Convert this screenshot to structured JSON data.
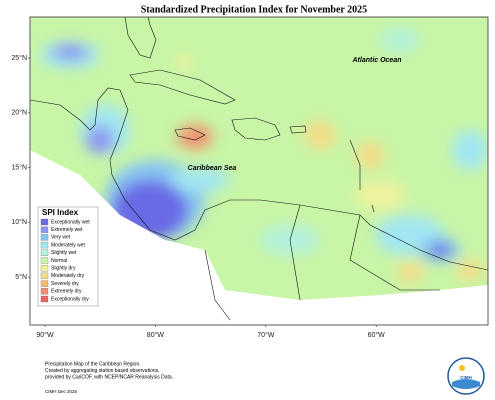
{
  "title": "Standardized Precipitation Index for November 2025",
  "lat_labels": [
    "25°N",
    "20°N",
    "15°N",
    "10°N",
    "5°N"
  ],
  "lon_labels": [
    "90°W",
    "80°W",
    "70°W",
    "60°W"
  ],
  "places": [
    "Atlantic Ocean",
    "Caribbean Sea"
  ],
  "legend": {
    "title": "SPI Index",
    "items": [
      {
        "label": "Exceptionally wet",
        "color": "#6b6be6"
      },
      {
        "label": "Extremely wet",
        "color": "#8c96f0"
      },
      {
        "label": "Very wet",
        "color": "#86c4f2"
      },
      {
        "label": "Moderately wet",
        "color": "#a2e6f2"
      },
      {
        "label": "Slightly wet",
        "color": "#b4f0dc"
      },
      {
        "label": "Normal",
        "color": "#c8f5a6"
      },
      {
        "label": "Slightly dry",
        "color": "#eef29e"
      },
      {
        "label": "Moderately dry",
        "color": "#f5dc86"
      },
      {
        "label": "Severely dry",
        "color": "#f5bc70"
      },
      {
        "label": "Extremely dry",
        "color": "#f29070"
      },
      {
        "label": "Exceptionally dry",
        "color": "#ee6262"
      }
    ]
  },
  "footer": [
    "Precipitation Map of the Caribbean Region.",
    "Created by aggregating station based observations,",
    "provided by CariCOF, with NCEP/NCAR Reanalysis Data."
  ],
  "credit": "CIMH Dec 2025",
  "logo": "CIMH"
}
